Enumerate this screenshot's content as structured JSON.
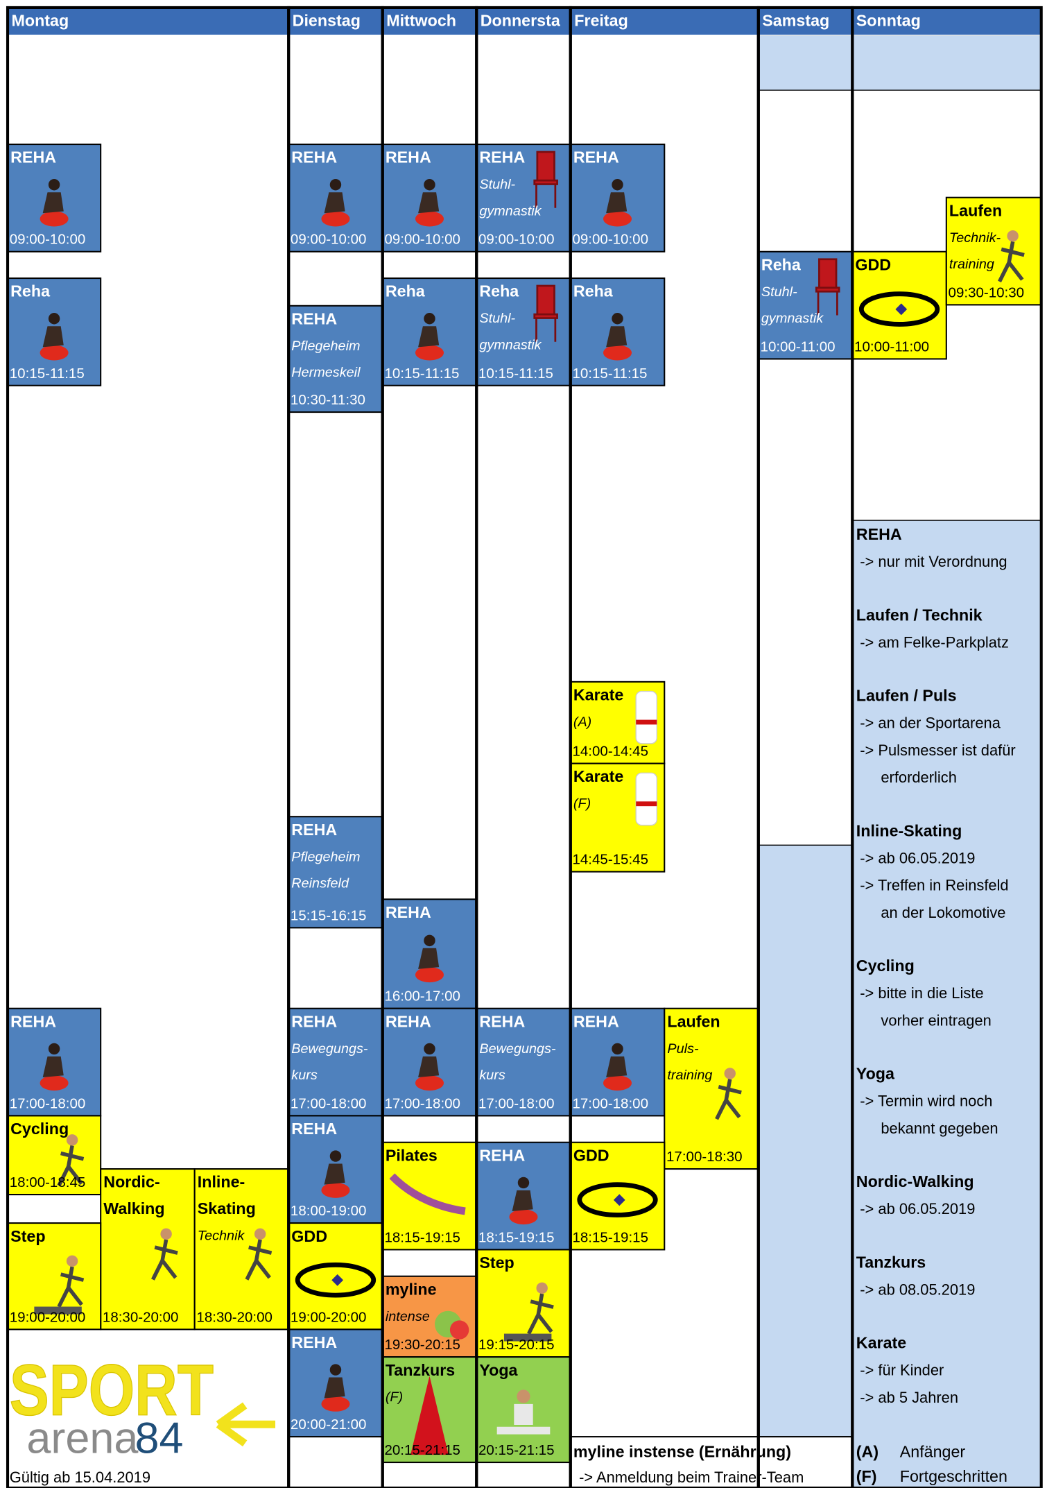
{
  "days": [
    "Montag",
    "Dienstag",
    "Mittwoch",
    "Donnersta",
    "Freitag",
    "Samstag",
    "Sonntag"
  ],
  "events": [
    {
      "title": [
        "REHA"
      ],
      "time": "09:00-10:00"
    },
    {
      "title": [
        "Reha"
      ],
      "time": "10:15-11:15"
    },
    {
      "title": [
        "REHA"
      ],
      "time": "17:00-18:00"
    },
    {
      "title": [
        "Cycling"
      ],
      "time": "18:00-18:45"
    },
    {
      "title": [
        "Nordic-",
        "Walking"
      ],
      "time": "18:30-20:00"
    },
    {
      "title": [
        "Inline-",
        "Skating"
      ],
      "subtitle": [
        "Technik"
      ],
      "time": "18:30-20:00"
    },
    {
      "title": [
        "Step"
      ],
      "time": "19:00-20:00"
    },
    {
      "title": [
        "REHA"
      ],
      "time": "09:00-10:00"
    },
    {
      "title": [
        "REHA"
      ],
      "subtitle": [
        "Pflegeheim",
        "Hermeskeil"
      ],
      "time": "10:30-11:30"
    },
    {
      "title": [
        "REHA"
      ],
      "subtitle": [
        "Pflegeheim",
        "Reinsfeld"
      ],
      "time": "15:15-16:15"
    },
    {
      "title": [
        "REHA"
      ],
      "subtitle": [
        "Bewegungs-",
        "kurs"
      ],
      "time": "17:00-18:00"
    },
    {
      "title": [
        "REHA"
      ],
      "time": "18:00-19:00"
    },
    {
      "title": [
        "GDD"
      ],
      "time": "19:00-20:00"
    },
    {
      "title": [
        "REHA"
      ],
      "time": "20:00-21:00"
    },
    {
      "title": [
        "REHA"
      ],
      "time": "09:00-10:00"
    },
    {
      "title": [
        "Reha"
      ],
      "time": "10:15-11:15"
    },
    {
      "title": [
        "REHA"
      ],
      "time": "16:00-17:00"
    },
    {
      "title": [
        "REHA"
      ],
      "time": "17:00-18:00"
    },
    {
      "title": [
        "Pilates"
      ],
      "time": "18:15-19:15"
    },
    {
      "title": [
        "myline"
      ],
      "subtitle": [
        "intense"
      ],
      "time": "19:30-20:15"
    },
    {
      "title": [
        "Tanzkurs"
      ],
      "subtitle": [
        "(F)"
      ],
      "time": "20:15-21:15"
    },
    {
      "title": [
        "REHA"
      ],
      "subtitle": [
        "Stuhl-",
        "gymnastik"
      ],
      "time": "09:00-10:00"
    },
    {
      "title": [
        "Reha"
      ],
      "subtitle": [
        "Stuhl-",
        "gymnastik"
      ],
      "time": "10:15-11:15"
    },
    {
      "title": [
        "REHA"
      ],
      "subtitle": [
        "Bewegungs-",
        "kurs"
      ],
      "time": "17:00-18:00"
    },
    {
      "title": [
        "REHA"
      ],
      "time": "18:15-19:15"
    },
    {
      "title": [
        "Step"
      ],
      "time": "19:15-20:15"
    },
    {
      "title": [
        "Yoga"
      ],
      "time": "20:15-21:15"
    },
    {
      "title": [
        "REHA"
      ],
      "time": "09:00-10:00"
    },
    {
      "title": [
        "Reha"
      ],
      "time": "10:15-11:15"
    },
    {
      "title": [
        "Karate"
      ],
      "subtitle": [
        "(A)"
      ],
      "time": "14:00-14:45"
    },
    {
      "title": [
        "Karate"
      ],
      "subtitle": [
        "(F)"
      ],
      "time": "14:45-15:45"
    },
    {
      "title": [
        "REHA"
      ],
      "time": "17:00-18:00"
    },
    {
      "title": [
        "Laufen"
      ],
      "subtitle": [
        "Puls-",
        "training"
      ],
      "time": "17:00-18:30"
    },
    {
      "title": [
        "GDD"
      ],
      "time": "18:15-19:15"
    },
    {
      "title": [
        "Reha"
      ],
      "subtitle": [
        "Stuhl-",
        "gymnastik"
      ],
      "time": "10:00-11:00"
    },
    {
      "title": [
        "GDD"
      ],
      "time": "10:00-11:00"
    },
    {
      "title": [
        "Laufen"
      ],
      "subtitle": [
        "Technik-",
        "training"
      ],
      "time": "09:30-10:30"
    }
  ],
  "notes": [
    {
      "title": "REHA",
      "lines": [
        "-> nur mit Verordnung"
      ]
    },
    {
      "title": "Laufen / Technik",
      "lines": [
        "-> am Felke-Parkplatz"
      ]
    },
    {
      "title": "Laufen / Puls",
      "lines": [
        "-> an der Sportarena",
        "-> Pulsmesser ist dafür",
        "erforderlich"
      ]
    },
    {
      "title": "Inline-Skating",
      "lines": [
        "-> ab 06.05.2019",
        "-> Treffen in Reinsfeld",
        "an der Lokomotive"
      ]
    },
    {
      "title": "Cycling",
      "lines": [
        "-> bitte in die Liste",
        "vorher eintragen"
      ]
    },
    {
      "title": "Yoga",
      "lines": [
        "-> Termin wird noch",
        "bekannt gegeben"
      ]
    },
    {
      "title": "Nordic-Walking",
      "lines": [
        "-> ab 06.05.2019"
      ]
    },
    {
      "title": "Tanzkurs",
      "lines": [
        "-> ab 08.05.2019"
      ]
    },
    {
      "title": "Karate",
      "lines": [
        "-> für Kinder",
        "-> ab 5 Jahren"
      ]
    }
  ],
  "legend": [
    {
      "key": "(A)",
      "text": "Anfänger"
    },
    {
      "key": "(F)",
      "text": "Fortgeschritten"
    }
  ],
  "footer_box": {
    "title": "myline instense (Ernährung)",
    "text": "-> Anmeldung beim Trainer-Team"
  },
  "logo": {
    "sport": "SPORT",
    "arena": "arena",
    "number": "84"
  },
  "valid_from": "Gültig ab 15.04.2019"
}
